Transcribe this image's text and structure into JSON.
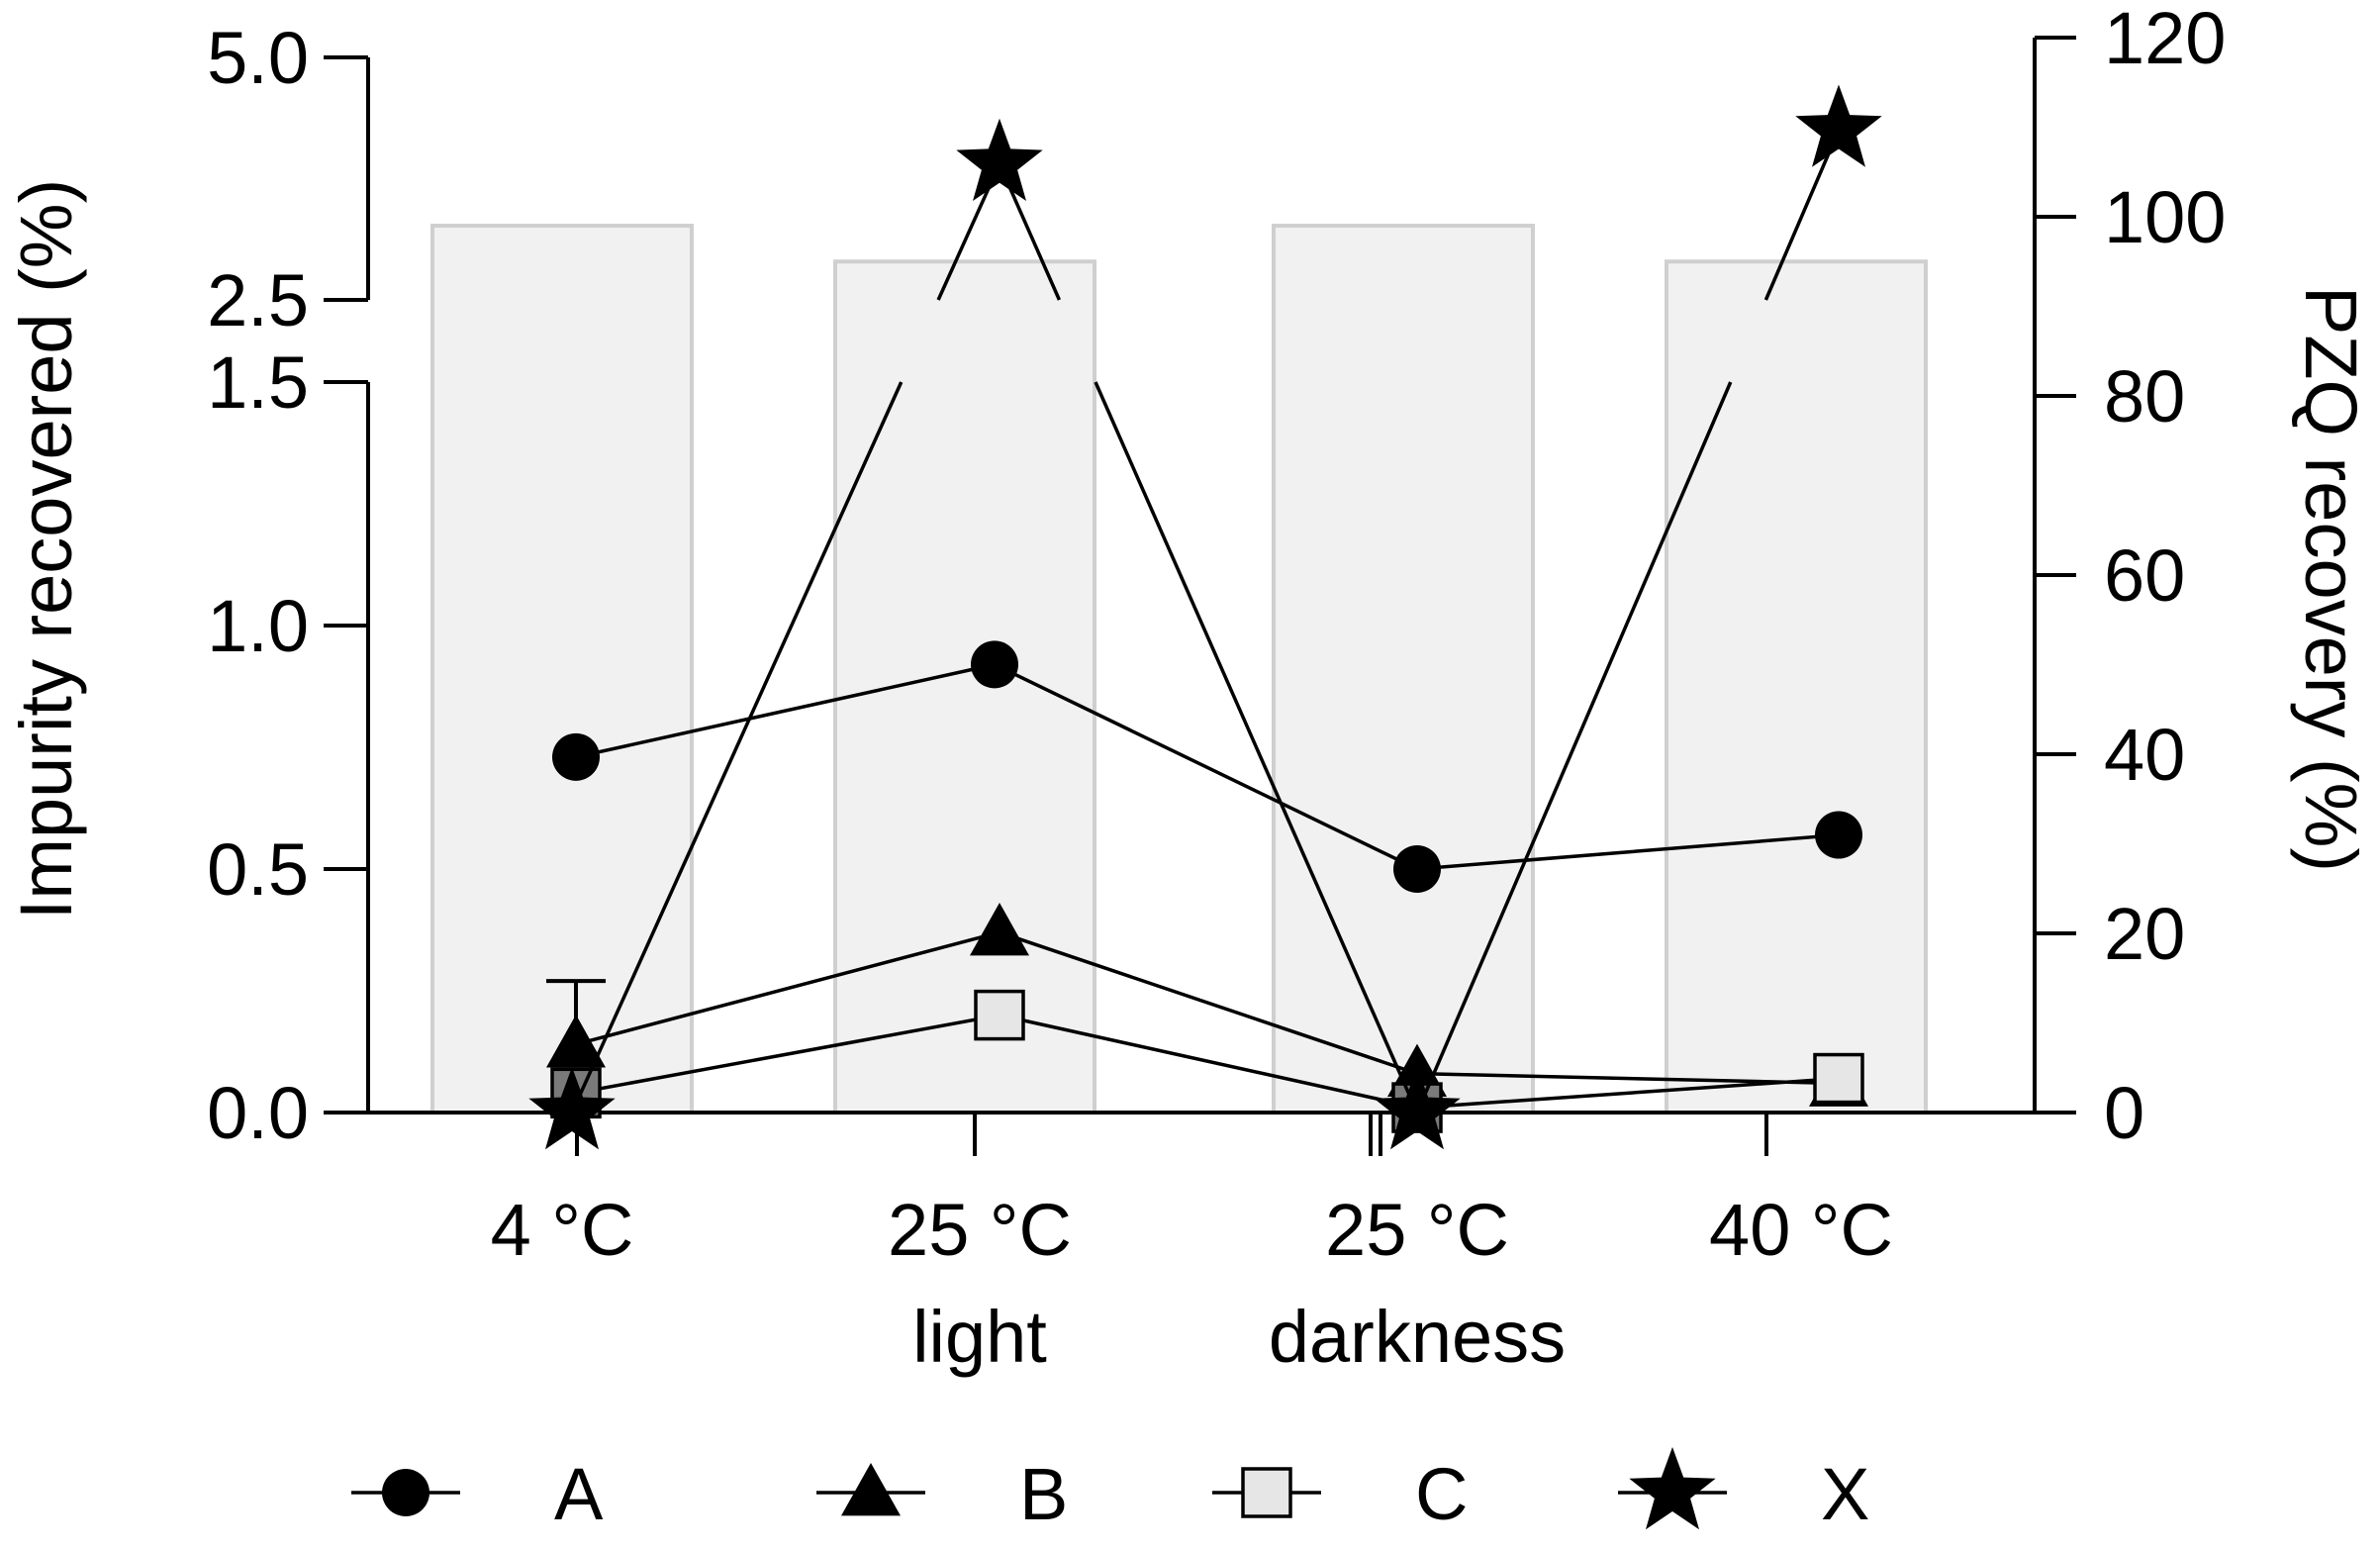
{
  "colors": {
    "bar_fill": "#f1f1f1",
    "bar_stroke": "#cfcfcf",
    "ink": "#000000",
    "square_fill": "#e6e6e6",
    "square_fill_small": "#7a7a7a"
  },
  "chart_data": {
    "type": "bar",
    "categories": [
      {
        "line1": "4 °C",
        "line2": ""
      },
      {
        "line1": "25 °C",
        "line2": "light"
      },
      {
        "line1": "25 °C",
        "line2": "darkness"
      },
      {
        "line1": "40 °C",
        "line2": ""
      }
    ],
    "left_axis": {
      "label": "Impurity recovered (%)",
      "broken": true,
      "lower_segment": {
        "range": [
          0,
          1.5
        ],
        "ticks": [
          "0.0",
          "0.5",
          "1.0",
          "1.5"
        ]
      },
      "upper_segment": {
        "range": [
          2.5,
          5.0
        ],
        "ticks": [
          "2.5",
          "5.0"
        ]
      }
    },
    "right_axis": {
      "label": "PZQ recovery (%)",
      "range": [
        0,
        120
      ],
      "ticks": [
        "0",
        "20",
        "40",
        "60",
        "80",
        "100",
        "120"
      ]
    },
    "bars": {
      "axis": "right",
      "values": [
        99,
        95,
        99,
        95
      ]
    },
    "series": [
      {
        "name": "A",
        "marker": "circle",
        "axis": "left",
        "values": [
          0.73,
          0.92,
          0.5,
          0.57
        ]
      },
      {
        "name": "B",
        "marker": "triangle",
        "axis": "left",
        "values": [
          0.14,
          0.37,
          0.08,
          0.06
        ],
        "error_bars": [
          0.13,
          0,
          0,
          0
        ]
      },
      {
        "name": "C",
        "marker": "square",
        "axis": "left",
        "values": [
          0.04,
          0.2,
          0.01,
          0.07
        ]
      },
      {
        "name": "X",
        "marker": "star",
        "axis": "left",
        "values": [
          0.0,
          3.9,
          0.0,
          4.25
        ]
      }
    ],
    "legend": {
      "position": "bottom",
      "entries": [
        "A",
        "B",
        "C",
        "X"
      ]
    }
  }
}
